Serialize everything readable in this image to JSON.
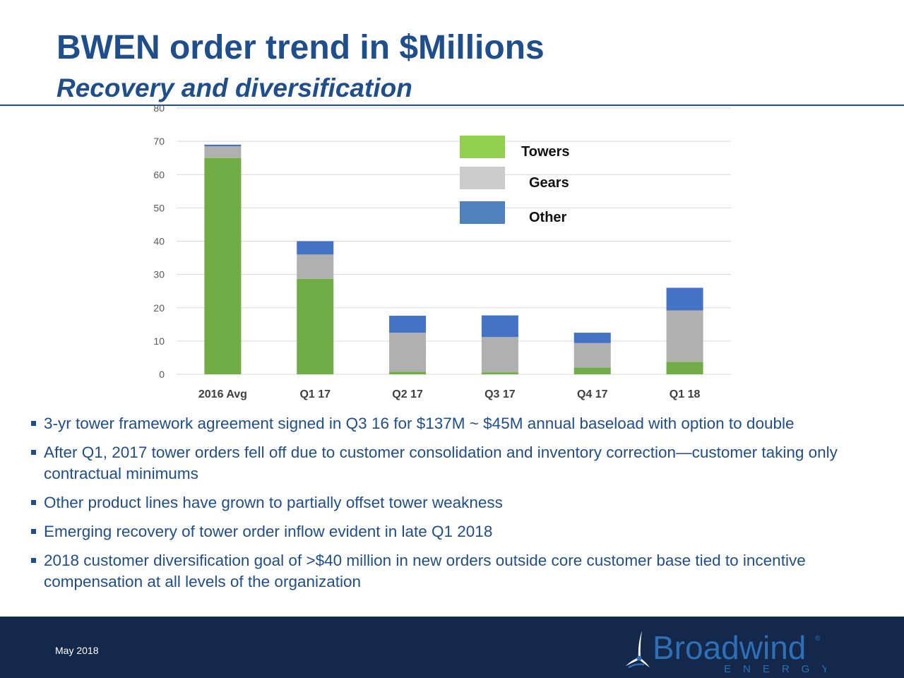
{
  "header": {
    "title": "BWEN order trend in $Millions",
    "subtitle": "Recovery and diversification"
  },
  "chart_data": {
    "type": "bar",
    "stacked": true,
    "categories": [
      "2016 Avg",
      "Q1 17",
      "Q2 17",
      "Q3 17",
      "Q4 17",
      "Q1 18"
    ],
    "series": [
      {
        "name": "Towers",
        "values": [
          65,
          28.7,
          0.8,
          0.6,
          2,
          3.7
        ],
        "color": "#70ad47"
      },
      {
        "name": "Gears",
        "values": [
          3.5,
          7.3,
          11.7,
          10.6,
          7.4,
          15.5
        ],
        "color": "#b0b0b0"
      },
      {
        "name": "Other",
        "values": [
          0.5,
          4,
          5.1,
          6.5,
          3.1,
          6.8
        ],
        "color": "#4472c4"
      }
    ],
    "legend": [
      {
        "label": "Towers",
        "color": "#92d050"
      },
      {
        "label": "Gears",
        "color": "#cccccc"
      },
      {
        "label": "Other",
        "color": "#4f81bd"
      }
    ],
    "ylim": [
      0,
      80
    ],
    "yticks": [
      0,
      10,
      20,
      30,
      40,
      50,
      60,
      70,
      80
    ],
    "grid": true,
    "legend_position": "top-right"
  },
  "bullets": [
    "3-yr tower framework agreement signed in Q3 16 for $137M ~ $45M annual baseload with option to double",
    "After Q1, 2017 tower orders fell off due to customer consolidation and inventory correction—customer taking only contractual minimums",
    "Other product lines have grown to partially offset tower weakness",
    "Emerging recovery of tower order inflow evident in late Q1 2018",
    "2018 customer diversification goal of >$40 million in new orders outside core customer base tied to incentive compensation at all levels of the organization"
  ],
  "footer": {
    "date": "May 2018",
    "logo_name": "Broadwind",
    "logo_sub": "ENERGY",
    "logo_mark": "®"
  },
  "colors": {
    "brand_blue": "#1f4e8c",
    "footer_navy": "#13284a",
    "logo_blue": "#2e6fb5"
  }
}
